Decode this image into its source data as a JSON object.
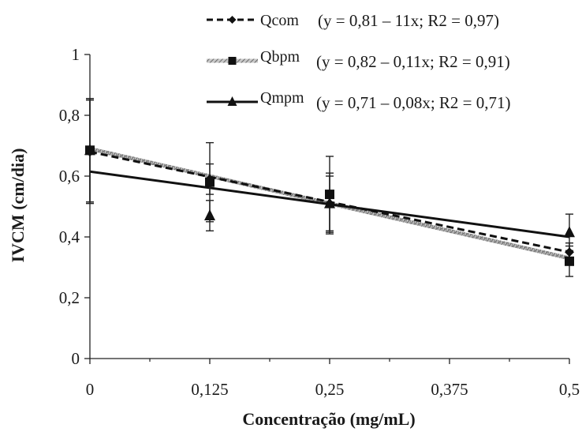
{
  "chart_data": {
    "type": "scatter",
    "xlabel": "Concentração (mg/mL)",
    "ylabel": "IVCM (cm/dia)",
    "xlim": [
      0,
      0.5
    ],
    "ylim": [
      0,
      1
    ],
    "x_ticks": [
      "0",
      "0,125",
      "0,25",
      "0,375",
      "0,5"
    ],
    "y_ticks": [
      "0",
      "0,2",
      "0,4",
      "0,6",
      "0,8",
      "1"
    ],
    "x": [
      0,
      0.125,
      0.25,
      0.5
    ],
    "grid": false,
    "legend_position": "top",
    "series": [
      {
        "name": "Qcom",
        "equation": "(y = 0,81 – 11x; R2 = 0,97)",
        "marker": "diamond",
        "line_style": "dashed",
        "color": "#111111",
        "values": [
          0.68,
          0.59,
          0.51,
          0.35
        ],
        "error": [
          0.17,
          0.05,
          0.1,
          0.03
        ],
        "trend": [
          0.68,
          0.35
        ]
      },
      {
        "name": "Qbpm",
        "equation": "(y = 0,82 – 0,11x; R2 = 0,91)",
        "marker": "square",
        "line_style": "hatched",
        "color": "#8a8a8a",
        "values": [
          0.685,
          0.58,
          0.54,
          0.32
        ],
        "error": [
          0.17,
          0.13,
          0.125,
          0.05
        ],
        "trend": [
          0.69,
          0.33
        ]
      },
      {
        "name": "Qmpm",
        "equation": "(y = 0,71 – 0,08x; R2 = 0,71)",
        "marker": "triangle",
        "line_style": "solid",
        "color": "#111111",
        "values": [
          0.685,
          0.47,
          0.51,
          0.415
        ],
        "error": [
          0.17,
          0.05,
          0.09,
          0.06
        ],
        "trend": [
          0.615,
          0.4
        ]
      }
    ]
  }
}
